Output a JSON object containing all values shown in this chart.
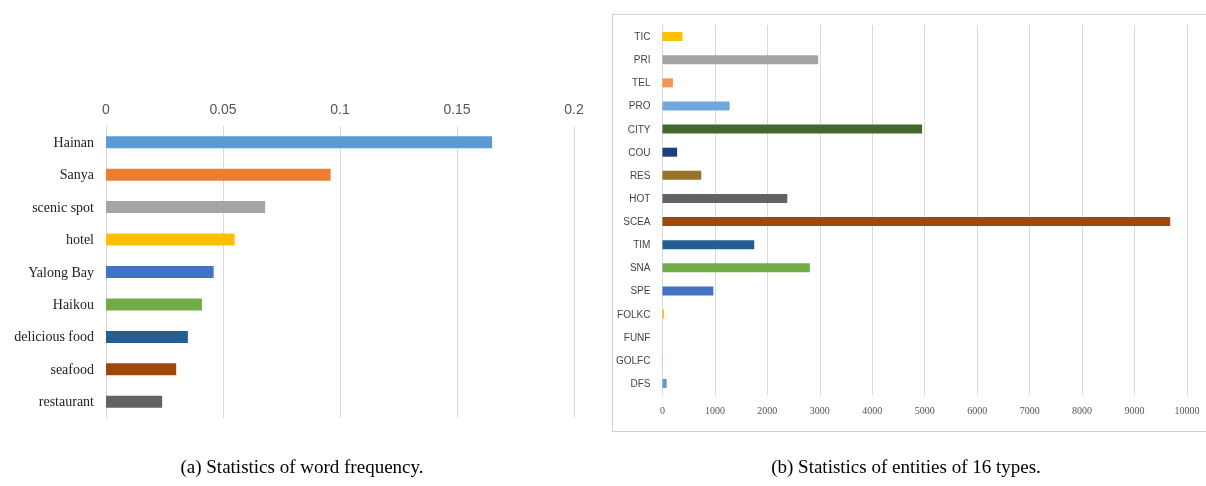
{
  "chart_data": [
    {
      "type": "bar",
      "orientation": "horizontal",
      "title": "(a)  Statistics of word frequency.",
      "categories": [
        "Hainan",
        "Sanya",
        "scenic spot",
        "hotel",
        "Yalong Bay",
        "Haikou",
        "delicious food",
        "seafood",
        "restaurant"
      ],
      "values": [
        0.165,
        0.096,
        0.068,
        0.055,
        0.046,
        0.041,
        0.035,
        0.03,
        0.024
      ],
      "colors": [
        "#5b9bd5",
        "#ed7d31",
        "#a5a5a5",
        "#ffc000",
        "#4472c4",
        "#70ad47",
        "#255e91",
        "#9e480e",
        "#636363"
      ],
      "xlim": [
        0,
        0.2
      ],
      "xticks": [
        0,
        0.05,
        0.1,
        0.15,
        0.2
      ],
      "grid": "x"
    },
    {
      "type": "bar",
      "orientation": "horizontal",
      "title": "(b)  Statistics of entities of 16 types.",
      "categories": [
        "TIC",
        "PRI",
        "TEL",
        "PRO",
        "CITY",
        "COU",
        "RES",
        "HOT",
        "SCEA",
        "TIM",
        "SNA",
        "SPE",
        "FOLKC",
        "FUNF",
        "GOLFC",
        "DFS"
      ],
      "values": [
        380,
        2970,
        200,
        1280,
        4950,
        280,
        740,
        2380,
        9680,
        1750,
        2810,
        970,
        30,
        0,
        10,
        80
      ],
      "colors": [
        "#ffc000",
        "#a5a5a5",
        "#f4965a",
        "#70a8de",
        "#43682b",
        "#1f3f78",
        "#997328",
        "#636363",
        "#9e480e",
        "#255e91",
        "#70ad47",
        "#4472c4",
        "#ffc000",
        "#5b9bd5",
        "#f4b183",
        "#5b9bd5"
      ],
      "xlim": [
        0,
        10000
      ],
      "xticks": [
        0,
        1000,
        2000,
        3000,
        4000,
        5000,
        6000,
        7000,
        8000,
        9000,
        10000
      ],
      "grid": "x"
    }
  ]
}
